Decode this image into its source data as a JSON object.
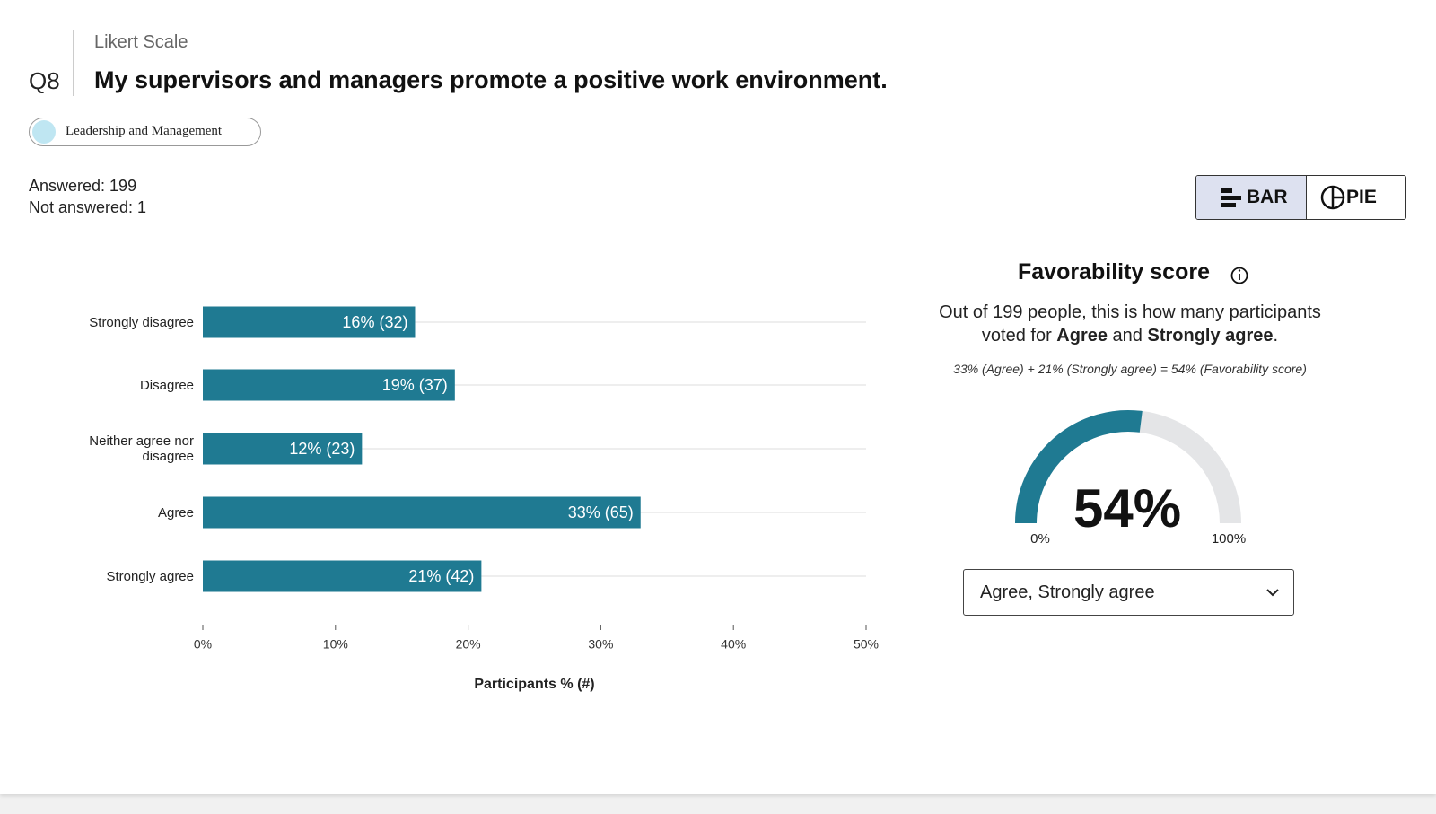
{
  "header": {
    "question_type": "Likert Scale",
    "number": "Q8",
    "title": "My supervisors and managers promote a positive work environment.",
    "tag": "Leadership and Management"
  },
  "stats": {
    "answered": "Answered: 199",
    "not_answered": "Not answered: 1"
  },
  "toggle": {
    "bar": "BAR",
    "pie": "PIE"
  },
  "chart_data": {
    "type": "bar",
    "orientation": "horizontal",
    "categories": [
      "Strongly disagree",
      "Disagree",
      "Neither agree nor disagree",
      "Agree",
      "Strongly agree"
    ],
    "values": [
      16,
      19,
      12,
      33,
      21
    ],
    "value_labels": [
      "16% (32)",
      "19% (37)",
      "12% (23)",
      "33% (65)",
      "21% (42)"
    ],
    "color": "#1f7a92",
    "xlim": [
      0,
      50
    ],
    "xticks": [
      {
        "value": 0,
        "label": "0%"
      },
      {
        "value": 10,
        "label": "10%"
      },
      {
        "value": 20,
        "label": "20%"
      },
      {
        "value": 30,
        "label": "30%"
      },
      {
        "value": 40,
        "label": "40%"
      },
      {
        "value": 50,
        "label": "50%"
      }
    ],
    "xlabel": "Participants % (#)",
    "grid": true
  },
  "favorability": {
    "title": "Favorability score",
    "desc_1": "Out of 199 people, this is how many participants voted for ",
    "desc_bold_1": "Agree",
    "desc_2": " and ",
    "desc_bold_2": "Strongly agree",
    "desc_3": ".",
    "formula": "33% (Agree) + 21% (Strongly agree) = 54% (Favorability score)",
    "gauge": {
      "value": 54,
      "label": "54%",
      "scale": [
        {
          "value": 0,
          "label": "0%"
        },
        {
          "value": 100,
          "label": "100%"
        }
      ],
      "color": "#1f7a92"
    },
    "dropdown": "Agree, Strongly agree"
  }
}
